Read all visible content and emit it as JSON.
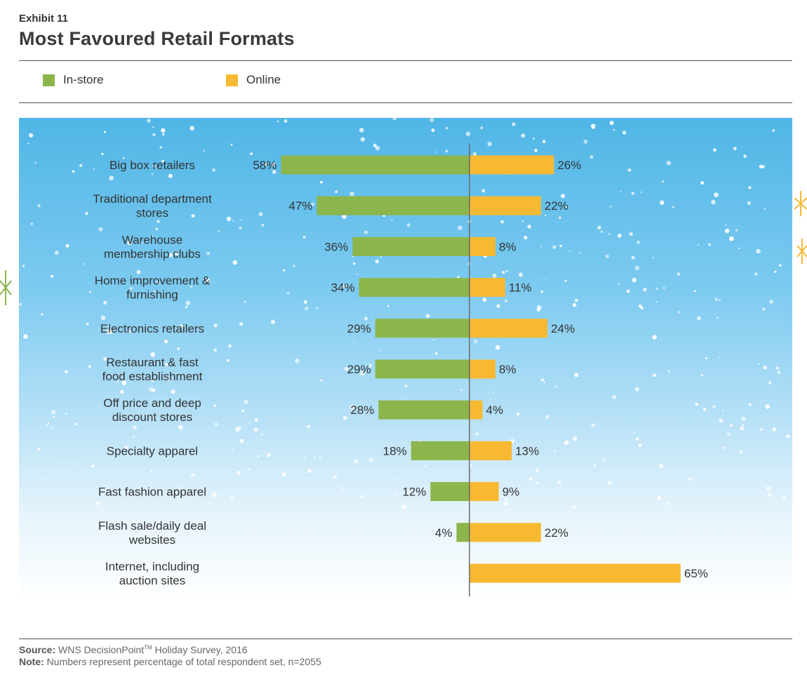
{
  "header": {
    "exhibit": "Exhibit 11",
    "title": "Most Favoured Retail Formats"
  },
  "legend": [
    {
      "label": "In-store",
      "color": "#8cb54c"
    },
    {
      "label": "Online",
      "color": "#f7b932"
    }
  ],
  "footer": {
    "source_label": "Source:",
    "source_text": "WNS DecisionPoint",
    "source_tm": "TM",
    "source_rest": " Holiday Survey, 2016",
    "note_label": "Note:",
    "note_text": "Numbers represent percentage of total respondent set, n=2055"
  },
  "chart_data": {
    "type": "bar",
    "orientation": "horizontal-diverging",
    "categories": [
      [
        "Big box retailers"
      ],
      [
        "Traditional department",
        "stores"
      ],
      [
        "Warehouse",
        "membership clubs"
      ],
      [
        "Home improvement &",
        "furnishing"
      ],
      [
        "Electronics retailers"
      ],
      [
        "Restaurant & fast",
        "food establishment"
      ],
      [
        "Off price and deep",
        "discount stores"
      ],
      [
        "Specialty apparel"
      ],
      [
        "Fast fashion apparel"
      ],
      [
        "Flash sale/daily deal",
        "websites"
      ],
      [
        "Internet, including",
        "auction sites"
      ]
    ],
    "series": [
      {
        "name": "In-store",
        "color": "#8cb54c",
        "values": [
          58,
          47,
          36,
          34,
          29,
          29,
          28,
          18,
          12,
          4,
          null
        ],
        "labels": [
          "58%",
          "47%",
          "36%",
          "34%",
          "29%",
          "29%",
          "28%",
          "18%",
          "12%",
          "4%",
          ""
        ]
      },
      {
        "name": "Online",
        "color": "#f7b932",
        "values": [
          26,
          22,
          8,
          11,
          24,
          8,
          4,
          13,
          9,
          22,
          65
        ],
        "labels": [
          "26%",
          "22%",
          "8%",
          "11%",
          "24%",
          "8%",
          "4%",
          "13%",
          "9%",
          "22%",
          "65%"
        ]
      }
    ],
    "unit": "%",
    "grid": false,
    "legend_position": "top-left",
    "background": "sky-gradient-with-snow"
  }
}
